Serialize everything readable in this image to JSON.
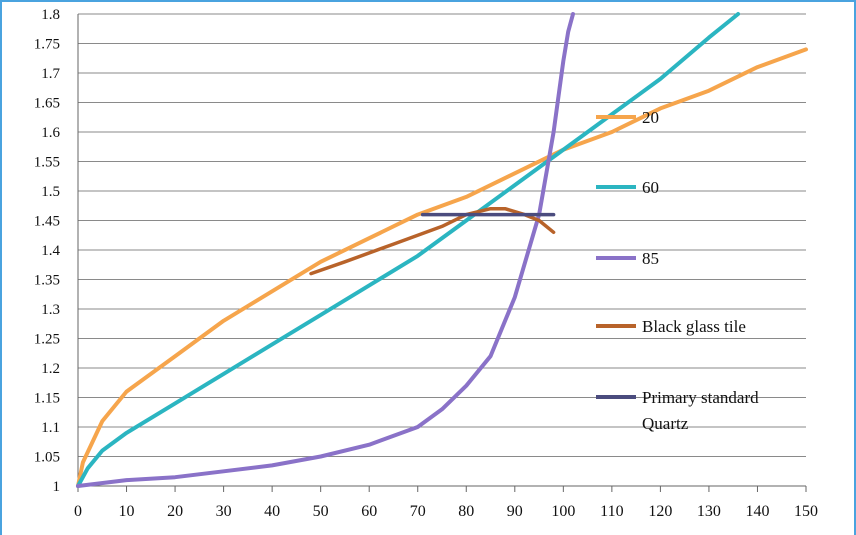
{
  "chart_data": {
    "type": "line",
    "title": "",
    "xlabel": "",
    "ylabel": "",
    "xlim": [
      0,
      150
    ],
    "ylim": [
      1,
      1.8
    ],
    "x_ticks": [
      "0",
      "10",
      "20",
      "30",
      "40",
      "50",
      "60",
      "70",
      "80",
      "90",
      "100",
      "110",
      "120",
      "130",
      "140",
      "150"
    ],
    "y_ticks": [
      "1",
      "1.05",
      "1.1",
      "1.15",
      "1.2",
      "1.25",
      "1.3",
      "1.35",
      "1.4",
      "1.45",
      "1.5",
      "1.55",
      "1.6",
      "1.65",
      "1.7",
      "1.75",
      "1.8"
    ],
    "grid": "horizontal",
    "legend_position": "right",
    "series": [
      {
        "name": "20",
        "color": "#f6a54c",
        "x": [
          0,
          1,
          5,
          10,
          20,
          30,
          40,
          46,
          50,
          60,
          70,
          80,
          90,
          100,
          110,
          120,
          130,
          140,
          150
        ],
        "y": [
          1.0,
          1.04,
          1.11,
          1.16,
          1.22,
          1.28,
          1.33,
          1.36,
          1.38,
          1.42,
          1.46,
          1.49,
          1.53,
          1.57,
          1.6,
          1.64,
          1.67,
          1.71,
          1.74
        ]
      },
      {
        "name": "60",
        "color": "#2bb5c1",
        "x": [
          0,
          2,
          5,
          10,
          20,
          30,
          40,
          50,
          60,
          70,
          80,
          90,
          100,
          110,
          120,
          130,
          136
        ],
        "y": [
          1.0,
          1.03,
          1.06,
          1.09,
          1.14,
          1.19,
          1.24,
          1.29,
          1.34,
          1.39,
          1.45,
          1.51,
          1.57,
          1.63,
          1.69,
          1.76,
          1.8
        ]
      },
      {
        "name": "85",
        "color": "#8a72c8",
        "x": [
          0,
          10,
          20,
          30,
          40,
          50,
          60,
          70,
          75,
          80,
          85,
          90,
          95,
          98,
          100,
          101,
          102
        ],
        "y": [
          1.0,
          1.01,
          1.015,
          1.025,
          1.035,
          1.05,
          1.07,
          1.1,
          1.13,
          1.17,
          1.22,
          1.32,
          1.46,
          1.6,
          1.72,
          1.77,
          1.8
        ]
      },
      {
        "name": "Black glass tile",
        "color": "#b8632a",
        "x": [
          48,
          55,
          65,
          75,
          80,
          85,
          88,
          92,
          95,
          98
        ],
        "y": [
          1.36,
          1.38,
          1.41,
          1.44,
          1.46,
          1.47,
          1.47,
          1.46,
          1.45,
          1.43
        ]
      },
      {
        "name": "Primary standard Quartz",
        "color": "#4b4c7e",
        "x": [
          71,
          98
        ],
        "y": [
          1.46,
          1.46
        ]
      }
    ],
    "legend": [
      {
        "label": "20",
        "color": "#f6a54c"
      },
      {
        "label": "60",
        "color": "#2bb5c1"
      },
      {
        "label": "85",
        "color": "#8a72c8"
      },
      {
        "label": "Black glass tile",
        "color": "#b8632a"
      },
      {
        "label": "Primary standard",
        "label2": "Quartz",
        "color": "#4b4c7e"
      }
    ]
  }
}
